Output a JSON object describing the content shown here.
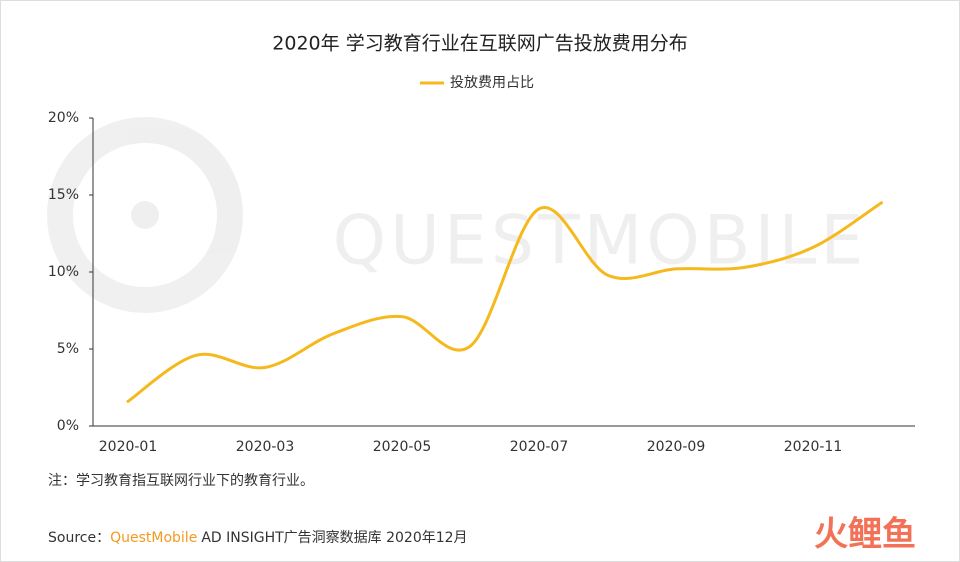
{
  "chart_data": {
    "type": "line",
    "title": "2020年 学习教育行业在互联网广告投放费用分布",
    "categories": [
      "2020-01",
      null,
      "2020-03",
      null,
      "2020-05",
      null,
      "2020-07",
      null,
      "2020-09",
      null,
      "2020-11",
      null
    ],
    "series": [
      {
        "name": "投放费用占比",
        "color": "#f6b91d",
        "values": [
          1.6,
          4.6,
          3.8,
          6.0,
          7.1,
          5.2,
          14.1,
          9.8,
          10.2,
          10.3,
          11.6,
          14.5
        ]
      }
    ],
    "ylim": [
      0,
      20
    ],
    "yticks": [
      {
        "value": 0,
        "label": "0%"
      },
      {
        "value": 5,
        "label": "5%"
      },
      {
        "value": 10,
        "label": "10%"
      },
      {
        "value": 15,
        "label": "15%"
      },
      {
        "value": 20,
        "label": "20%"
      }
    ],
    "grid": false,
    "legend": "top",
    "note": "注：学习教育指互联网行业下的教育行业。",
    "source_label": "Source：",
    "source_brand": "QuestMobile",
    "source_rest": "AD INSIGHT广告洞察数据库 2020年12月",
    "watermark": "QUESTMOBILE",
    "logo": "火鲤鱼"
  }
}
